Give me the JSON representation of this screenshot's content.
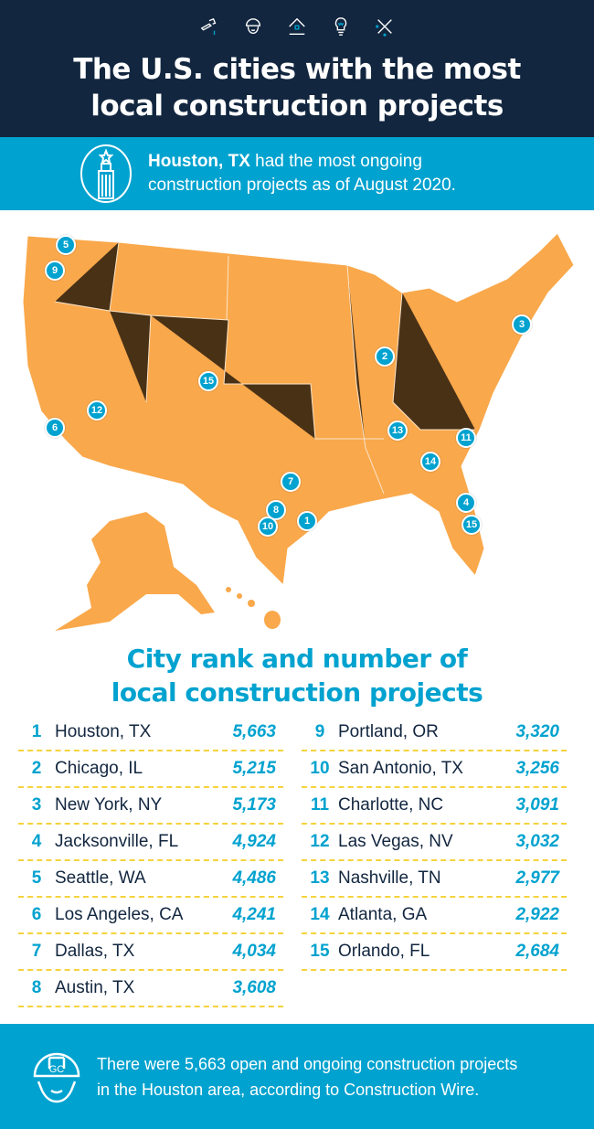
{
  "header": {
    "icons": [
      "hammer-icon",
      "hardhat-worker-icon",
      "house-icon",
      "lightbulb-icon",
      "tools-icon"
    ],
    "title_line1": "The U.S. cities with the most",
    "title_line2": "local construction projects"
  },
  "banner": {
    "bold": "Houston, TX",
    "text_line1": " had the most ongoing",
    "text_line2": "construction projects as of August 2020.",
    "icon": "skyscraper-icon"
  },
  "map": {
    "markers": [
      "5",
      "9",
      "15",
      "12",
      "6",
      "2",
      "3",
      "13",
      "11",
      "14",
      "7",
      "8",
      "10",
      "1",
      "4",
      "15"
    ]
  },
  "subtitle": {
    "line1": "City rank and number of",
    "line2": "local construction projects"
  },
  "rankings_left": [
    {
      "rank": "1",
      "city": "Houston, TX",
      "value": "5,663"
    },
    {
      "rank": "2",
      "city": "Chicago, IL",
      "value": "5,215"
    },
    {
      "rank": "3",
      "city": "New York, NY",
      "value": "5,173"
    },
    {
      "rank": "4",
      "city": "Jacksonville, FL",
      "value": "4,924"
    },
    {
      "rank": "5",
      "city": "Seattle, WA",
      "value": "4,486"
    },
    {
      "rank": "6",
      "city": "Los Angeles, CA",
      "value": "4,241"
    },
    {
      "rank": "7",
      "city": "Dallas, TX",
      "value": "4,034"
    },
    {
      "rank": "8",
      "city": "Austin, TX",
      "value": "3,608"
    }
  ],
  "rankings_right": [
    {
      "rank": "9",
      "city": "Portland, OR",
      "value": "3,320"
    },
    {
      "rank": "10",
      "city": "San Antonio, TX",
      "value": "3,256"
    },
    {
      "rank": "11",
      "city": "Charlotte, NC",
      "value": "3,091"
    },
    {
      "rank": "12",
      "city": "Las Vegas, NV",
      "value": "3,032"
    },
    {
      "rank": "13",
      "city": "Nashville, TN",
      "value": "2,977"
    },
    {
      "rank": "14",
      "city": "Atlanta, GA",
      "value": "2,922"
    },
    {
      "rank": "15",
      "city": "Orlando, FL",
      "value": "2,684"
    }
  ],
  "footer": {
    "text": "There were 5,663 open and ongoing construction projects in the Houston area, according to Construction Wire.",
    "icon_label": "GC"
  },
  "colors": {
    "navy": "#12263f",
    "blue": "#00a2cf",
    "orange": "#f9a84b",
    "yellow": "#f5d33c"
  }
}
